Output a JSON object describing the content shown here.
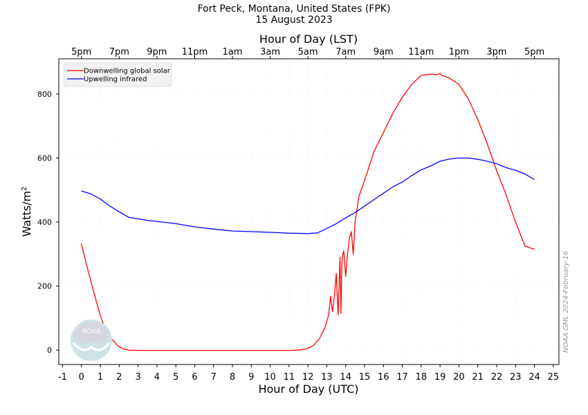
{
  "chart_data": {
    "type": "line",
    "title": "Fort Peck, Montana, United States (FPK)",
    "subtitle": "15 August 2023",
    "xlabel": "Hour of Day (UTC)",
    "x2label": "Hour of Day (LST)",
    "ylabel": "Watts/m",
    "ylabel_sup": "2",
    "xlim": [
      -1.2,
      25.3
    ],
    "ylim": [
      -45,
      910
    ],
    "xticks": [
      -1,
      0,
      1,
      2,
      3,
      4,
      5,
      6,
      7,
      8,
      9,
      10,
      11,
      12,
      13,
      14,
      15,
      16,
      17,
      18,
      19,
      20,
      21,
      22,
      23,
      24,
      25
    ],
    "yticks": [
      0,
      200,
      400,
      600,
      800
    ],
    "top_ticks": [
      {
        "x": 0,
        "label": "5pm"
      },
      {
        "x": 2,
        "label": "7pm"
      },
      {
        "x": 4,
        "label": "9pm"
      },
      {
        "x": 6,
        "label": "11pm"
      },
      {
        "x": 8,
        "label": "1am"
      },
      {
        "x": 10,
        "label": "3am"
      },
      {
        "x": 12,
        "label": "5am"
      },
      {
        "x": 14,
        "label": "7am"
      },
      {
        "x": 16,
        "label": "9am"
      },
      {
        "x": 18,
        "label": "11am"
      },
      {
        "x": 20,
        "label": "1pm"
      },
      {
        "x": 22,
        "label": "3pm"
      },
      {
        "x": 24,
        "label": "5pm"
      }
    ],
    "grid": true,
    "legend_position": "top-left",
    "watermark": "NOAA GML 2024-February-16",
    "logo_text": "NOAA",
    "series": [
      {
        "name": "Downwelling global solar",
        "color": "#ff0000",
        "x": [
          0,
          0.25,
          0.5,
          0.75,
          1,
          1.25,
          1.5,
          1.75,
          1.9,
          2.0,
          2.25,
          2.5,
          3,
          4,
          5,
          6,
          7,
          8,
          9,
          10,
          11,
          11.5,
          12,
          12.3,
          12.6,
          12.9,
          13.1,
          13.2,
          13.3,
          13.4,
          13.5,
          13.6,
          13.7,
          13.75,
          13.8,
          13.85,
          13.9,
          14.0,
          14.1,
          14.2,
          14.3,
          14.4,
          14.5,
          14.6,
          14.7,
          15,
          15.5,
          16,
          16.5,
          17,
          17.5,
          18,
          18.5,
          18.9,
          19,
          19.1,
          19.5,
          20,
          20.5,
          21,
          21.5,
          22,
          22.5,
          23,
          23.5,
          24
        ],
        "y": [
          333,
          270,
          215,
          160,
          108,
          68,
          40,
          25,
          15,
          10,
          3,
          0,
          -1,
          -1,
          -1,
          -1,
          -1,
          -1,
          -1,
          -1,
          -1,
          0,
          5,
          15,
          35,
          70,
          110,
          168,
          120,
          165,
          240,
          110,
          290,
          115,
          270,
          300,
          310,
          230,
          300,
          350,
          370,
          300,
          400,
          440,
          480,
          530,
          620,
          680,
          740,
          790,
          830,
          858,
          862,
          860,
          865,
          858,
          850,
          830,
          785,
          720,
          645,
          560,
          485,
          400,
          325,
          315
        ]
      },
      {
        "name": "Upwelling infrared",
        "color": "#0000ff",
        "x": [
          0,
          0.5,
          1,
          1.5,
          2,
          2.5,
          3,
          3.5,
          4,
          5,
          6,
          7,
          8,
          9,
          10,
          11,
          12,
          12.5,
          13,
          13.5,
          14,
          14.5,
          15,
          15.5,
          16,
          16.5,
          17,
          17.5,
          18,
          18.5,
          19,
          19.5,
          20,
          20.5,
          21,
          21.5,
          22,
          22.5,
          23,
          23.5,
          24
        ],
        "y": [
          497,
          488,
          472,
          450,
          432,
          415,
          410,
          405,
          402,
          395,
          385,
          378,
          372,
          370,
          368,
          365,
          364,
          366,
          380,
          395,
          413,
          430,
          450,
          470,
          490,
          510,
          525,
          545,
          563,
          575,
          590,
          597,
          600,
          600,
          596,
          590,
          582,
          570,
          562,
          550,
          533
        ]
      }
    ]
  }
}
